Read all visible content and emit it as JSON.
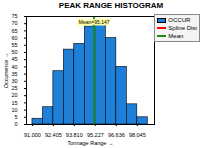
{
  "chart_data": {
    "type": "histogram",
    "title": "PEAK RANGE HISTOGRAM",
    "x_label": "Tonnage Range",
    "y_label": "Occurrence",
    "bins": [
      91.0,
      91.703,
      92.405,
      93.108,
      93.81,
      94.519,
      95.227,
      95.932,
      96.636,
      97.341,
      98.045,
      98.75
    ],
    "series": [
      {
        "name": "OCCUR",
        "type": "bar",
        "color": "#1e7fd8",
        "values": [
          4,
          12,
          37,
          52,
          56,
          68,
          70,
          60,
          40,
          14,
          5
        ]
      },
      {
        "name": "Spline Dist",
        "type": "line",
        "color": "#ff0000",
        "values": [
          null,
          null,
          null,
          null,
          null,
          null,
          null,
          null,
          null,
          null,
          null
        ]
      },
      {
        "name": "Mean",
        "type": "rule",
        "color": "#1a8a1a",
        "value": 95.147,
        "label": "Mean=95.147"
      }
    ],
    "xlim": [
      90.6,
      99.2
    ],
    "xticks": [
      {
        "value": 91,
        "label": "91.000"
      },
      92.405,
      {
        "value": 93.81,
        "label": "93.810"
      },
      95.227,
      96.636,
      98.045
    ],
    "ylim": [
      0,
      75
    ],
    "yticks": [
      0,
      5,
      10,
      15,
      20,
      25,
      30,
      35,
      40,
      45,
      50,
      55,
      60,
      65,
      70,
      75
    ],
    "legend": "right"
  }
}
